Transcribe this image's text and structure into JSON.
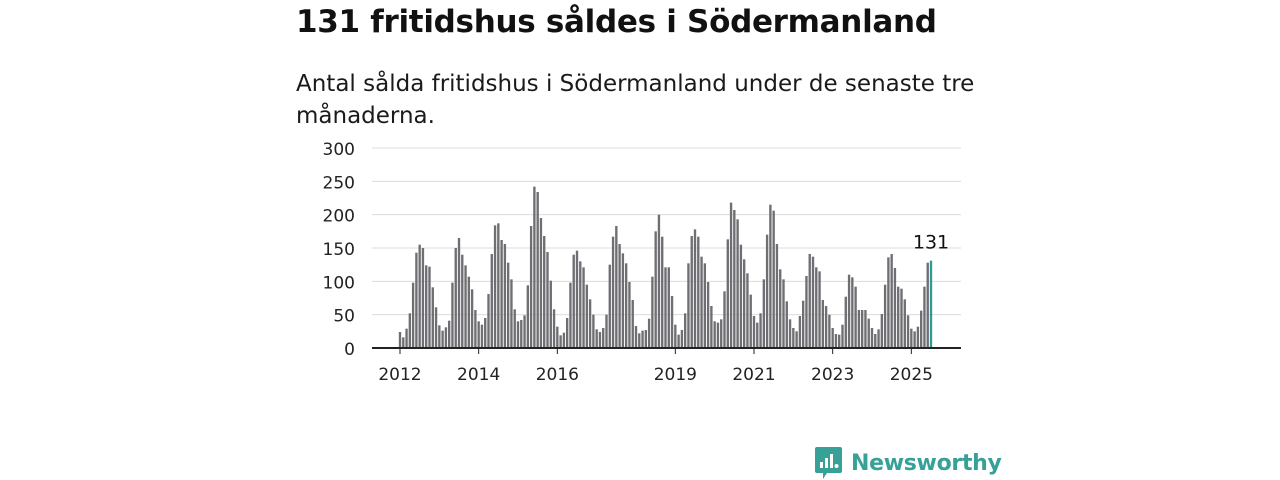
{
  "title": "131 fritidshus såldes i Södermanland",
  "subtitle": "Antal sålda fritidshus i Södermanland under de senaste tre månaderna.",
  "brand": {
    "name": "Newsworthy",
    "icon": "newsworthy-logo-icon"
  },
  "colors": {
    "bar": "#6e6e73",
    "highlight": "#2a9d95",
    "grid": "#dcdcdc",
    "axis": "#222222",
    "brand": "#37a197"
  },
  "chart_data": {
    "type": "bar",
    "y_ticks": [
      0,
      50,
      100,
      150,
      200,
      250,
      300
    ],
    "ylim": [
      0,
      300
    ],
    "grid": true,
    "x_tick_labels": [
      "2012",
      "2014",
      "2016",
      "2019",
      "2021",
      "2023",
      "2025"
    ],
    "start": "2012-01",
    "end": "2025-09",
    "annotation": "131",
    "series": [
      {
        "values": [
          24,
          16,
          29,
          52,
          98,
          143,
          155,
          150,
          124,
          122,
          91,
          61,
          34,
          26,
          31,
          41,
          98,
          150,
          165,
          140,
          124,
          107,
          88,
          57,
          40,
          35,
          45,
          81,
          141,
          184,
          187,
          162,
          156,
          128,
          103,
          58,
          40,
          42,
          49,
          94,
          183,
          242,
          234,
          195,
          168,
          144,
          101,
          58,
          32,
          19,
          23,
          45,
          98,
          140,
          146,
          130,
          121,
          95,
          73,
          50,
          28,
          24,
          30,
          50,
          125,
          167,
          183,
          156,
          142,
          127,
          99,
          72,
          33,
          22,
          26,
          27,
          44,
          107,
          175,
          200,
          167,
          121,
          121,
          78,
          35,
          20,
          27,
          52,
          127,
          168,
          178,
          167,
          137,
          127,
          99,
          63,
          40,
          38,
          43,
          85,
          163,
          218,
          207,
          193,
          155,
          133,
          112,
          80,
          48,
          38,
          52,
          103,
          170,
          215,
          206,
          156,
          118,
          103,
          70,
          43,
          30,
          25,
          48,
          71,
          108,
          141,
          137,
          121,
          115,
          72,
          63,
          50,
          30,
          21,
          20,
          35,
          77,
          110,
          106,
          92,
          57,
          57,
          57,
          44,
          30,
          21,
          28,
          51,
          95,
          136,
          141,
          120,
          92,
          89,
          73,
          49,
          29,
          25,
          32,
          56,
          92,
          128,
          131
        ]
      }
    ]
  }
}
